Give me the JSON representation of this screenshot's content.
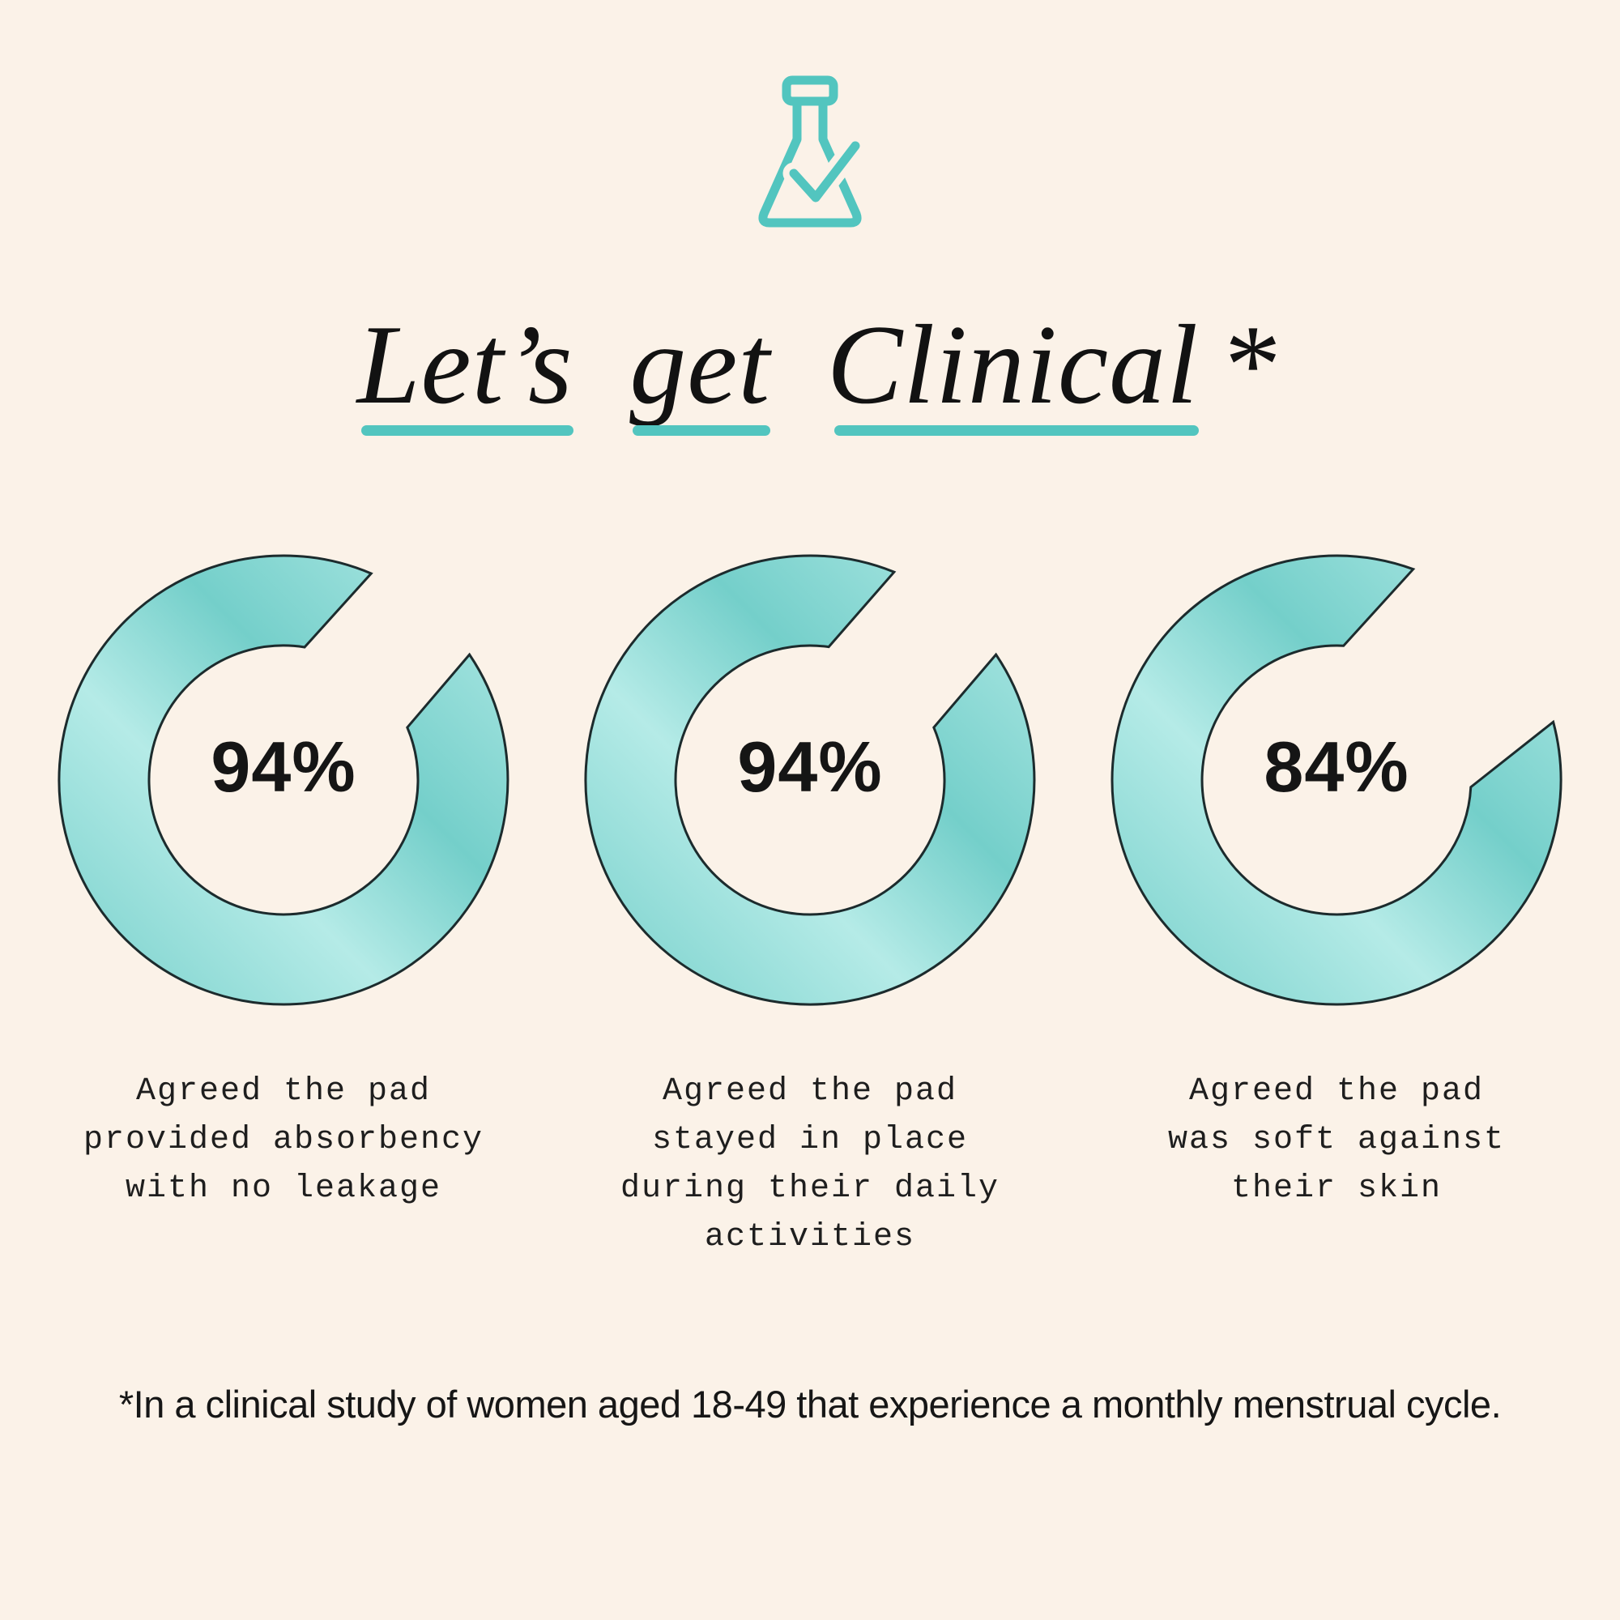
{
  "page": {
    "background_color": "#fbf2e8",
    "accent_color": "#52c5bf",
    "text_color": "#141414"
  },
  "header": {
    "icon": "flask-check-icon",
    "title_words": [
      "Let’s",
      "get",
      "Clinical"
    ],
    "title_asterisk": "*"
  },
  "chart_data": [
    {
      "type": "donut",
      "value": 94,
      "label": "94%",
      "caption": "Agreed the pad\nprovided absorbency\nwith no leakage",
      "outer_radius": 277,
      "inner_radius": 166,
      "outer_gap_deg": [
        23,
        56
      ],
      "inner_gap_deg": [
        9,
        67
      ],
      "ring_base": "#74cfca",
      "ring_light": "#b5ebe7",
      "outline": "#1c2b2d"
    },
    {
      "type": "donut",
      "value": 94,
      "label": "94%",
      "caption": "Agreed the pad\nstayed in place\nduring their daily\nactivities",
      "outer_radius": 277,
      "inner_radius": 166,
      "outer_gap_deg": [
        22,
        56
      ],
      "inner_gap_deg": [
        8,
        67
      ],
      "ring_base": "#74cfca",
      "ring_light": "#b5ebe7",
      "outline": "#1c2b2d"
    },
    {
      "type": "donut",
      "value": 84,
      "label": "84%",
      "caption": "Agreed the pad\nwas soft against\ntheir skin",
      "outer_radius": 277,
      "inner_radius": 166,
      "outer_gap_deg": [
        20,
        75
      ],
      "inner_gap_deg": [
        3,
        93
      ],
      "ring_base": "#74cfca",
      "ring_light": "#b5ebe7",
      "outline": "#1c2b2d"
    }
  ],
  "footnote": {
    "text": "*In a clinical study of women aged 18-49 that experience a monthly menstrual cycle."
  }
}
